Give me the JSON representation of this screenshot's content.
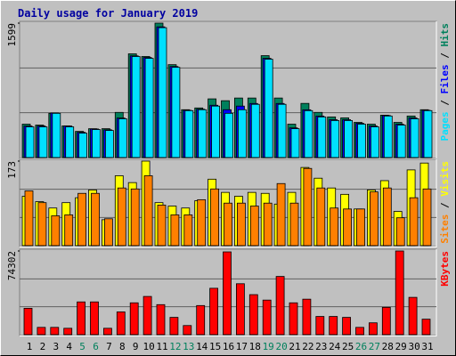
{
  "chart_data": [
    {
      "type": "bar",
      "title": "Daily usage for January 2019",
      "series": [
        {
          "name": "Hits",
          "color": "#00805c",
          "values": [
            397,
            386,
            526,
            376,
            311,
            343,
            343,
            537,
            1234,
            1202,
            1599,
            1105,
            569,
            590,
            698,
            676,
            708,
            708,
            1212,
            708,
            397,
            644,
            537,
            483,
            472,
            418,
            397,
            504,
            418,
            494,
            569
          ]
        },
        {
          "name": "Files",
          "color": "#0000ff",
          "values": [
            375,
            375,
            530,
            375,
            300,
            340,
            330,
            470,
            1210,
            1190,
            1555,
            1083,
            562,
            575,
            622,
            569,
            612,
            643,
            1180,
            643,
            353,
            568,
            493,
            450,
            450,
            407,
            375,
            500,
            396,
            471,
            562
          ]
        },
        {
          "name": "Pages",
          "color": "#00e0ff",
          "values": [
            365,
            365,
            526,
            365,
            290,
            333,
            322,
            461,
            1202,
            1180,
            1545,
            1073,
            558,
            569,
            612,
            526,
            569,
            633,
            1170,
            633,
            343,
            558,
            483,
            440,
            440,
            397,
            365,
            494,
            386,
            461,
            558
          ]
        }
      ],
      "ylim": [
        0,
        1599
      ],
      "yticks": [
        1599
      ]
    },
    {
      "type": "bar",
      "series": [
        {
          "name": "Visits",
          "color": "#ffff00",
          "values": [
            101,
            90,
            77,
            88,
            98,
            114,
            53,
            143,
            129,
            173,
            88,
            81,
            77,
            92,
            136,
            109,
            101,
            109,
            107,
            85,
            109,
            160,
            138,
            118,
            105,
            75,
            114,
            133,
            70,
            155,
            169
          ]
        },
        {
          "name": "Sites",
          "color": "#ff8000",
          "values": [
            112,
            88,
            61,
            63,
            107,
            107,
            55,
            118,
            116,
            143,
            83,
            63,
            63,
            94,
            116,
            87,
            87,
            81,
            87,
            127,
            87,
            158,
            118,
            77,
            75,
            75,
            110,
            118,
            57,
            98,
            116
          ]
        }
      ],
      "ylim": [
        0,
        173
      ],
      "yticks": [
        173
      ]
    },
    {
      "type": "bar",
      "categories": [
        "1",
        "2",
        "3",
        "4",
        "5",
        "6",
        "7",
        "8",
        "9",
        "10",
        "11",
        "12",
        "13",
        "14",
        "15",
        "16",
        "17",
        "18",
        "19",
        "20",
        "21",
        "22",
        "23",
        "24",
        "25",
        "26",
        "27",
        "28",
        "29",
        "30",
        "31"
      ],
      "category_colors": [
        "#000000",
        "#000000",
        "#000000",
        "#000000",
        "#00805c",
        "#00805c",
        "#000000",
        "#000000",
        "#000000",
        "#000000",
        "#000000",
        "#00805c",
        "#00805c",
        "#000000",
        "#000000",
        "#000000",
        "#000000",
        "#000000",
        "#00805c",
        "#00805c",
        "#000000",
        "#000000",
        "#000000",
        "#000000",
        "#000000",
        "#00805c",
        "#00805c",
        "#000000",
        "#000000",
        "#000000",
        "#000000"
      ],
      "series": [
        {
          "name": "KBytes",
          "color": "#ff0000",
          "values": [
            23400,
            6460,
            6460,
            5650,
            29070,
            29070,
            5650,
            20190,
            28260,
            33920,
            26650,
            15340,
            8080,
            25840,
            41190,
            73500,
            45220,
            35530,
            30690,
            51690,
            28260,
            31500,
            16150,
            16150,
            15340,
            6460,
            10500,
            24230,
            74302,
            33110,
            13730
          ]
        }
      ],
      "ylim": [
        0,
        74302
      ],
      "yticks": [
        74302
      ]
    }
  ]
}
